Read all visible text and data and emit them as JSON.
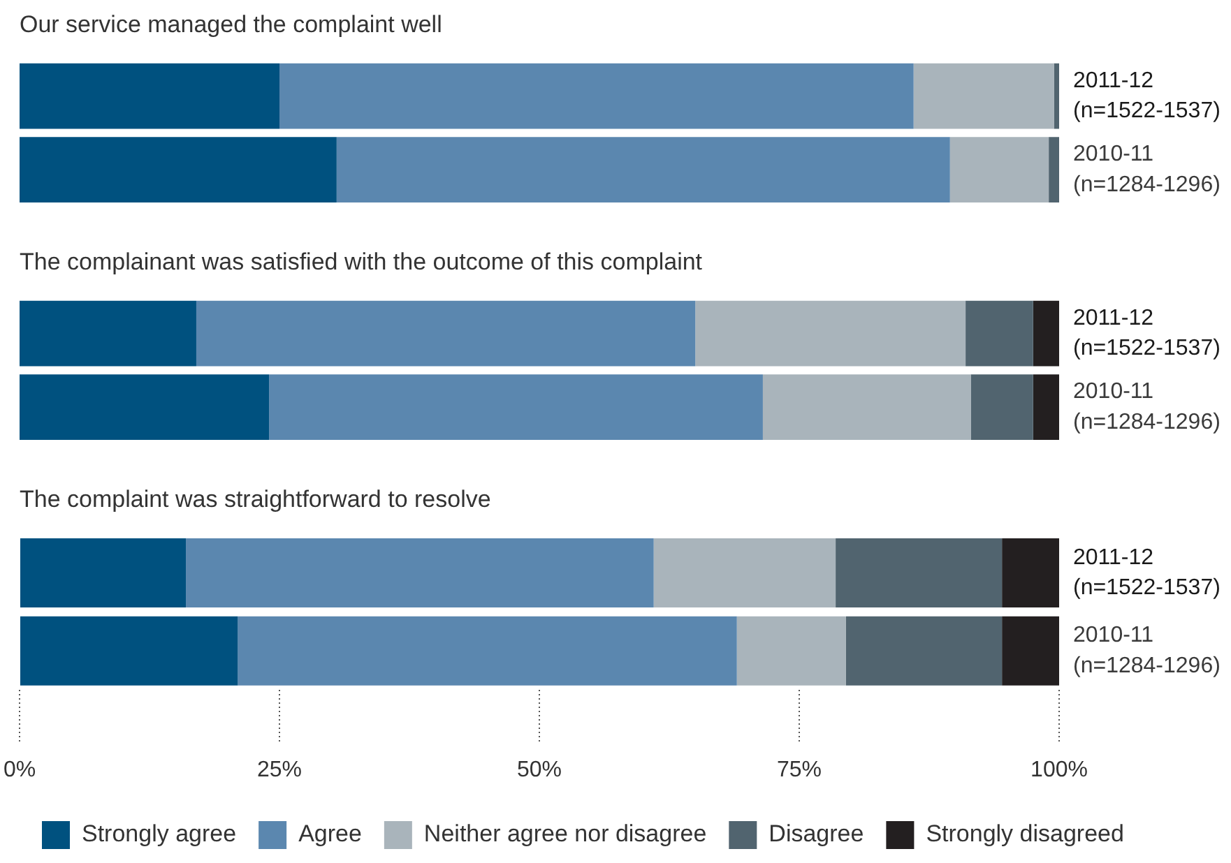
{
  "chart_data": [
    {
      "type": "bar",
      "orientation": "horizontal",
      "stacked": true,
      "grid": false,
      "tick_labels": "y",
      "title": "Our service managed the complaint well",
      "categories": [
        "2011-12\n(n=1522-1537)",
        "2010-11\n(n=1284-1296)"
      ],
      "xlim": [
        0,
        100
      ],
      "series": [
        {
          "color": "#00517f",
          "values": [
            25,
            30.5
          ]
        },
        {
          "color": "#5b87af",
          "values": [
            61,
            59
          ]
        },
        {
          "color": "#a9b4bb",
          "values": [
            13.5,
            9.5
          ]
        },
        {
          "color": "#51646f",
          "values": [
            0.5,
            1
          ]
        },
        {
          "color": "#231f20",
          "values": [
            0,
            0
          ]
        }
      ]
    },
    {
      "type": "bar",
      "orientation": "horizontal",
      "stacked": true,
      "grid": false,
      "tick_labels": "y",
      "title": "The complainant was satisfied with the outcome of this complaint",
      "categories": [
        "2011-12\n(n=1522-1537)",
        "2010-11\n(n=1284-1296)"
      ],
      "xlim": [
        0,
        100
      ],
      "series": [
        {
          "color": "#00517f",
          "values": [
            17,
            24
          ]
        },
        {
          "color": "#5b87af",
          "values": [
            48,
            47.5
          ]
        },
        {
          "color": "#a9b4bb",
          "values": [
            26,
            20
          ]
        },
        {
          "color": "#51646f",
          "values": [
            6.5,
            6
          ]
        },
        {
          "color": "#231f20",
          "values": [
            2.5,
            2.5
          ]
        }
      ]
    },
    {
      "type": "bar",
      "orientation": "horizontal",
      "stacked": true,
      "grid": false,
      "legend": "bottom",
      "title": "The complaint was straightforward to resolve",
      "categories": [
        "2011-12\n(n=1522-1537)",
        "2010-11\n(n=1284-1296)"
      ],
      "xlim": [
        0,
        100
      ],
      "xticks": [
        {
          "value": 0,
          "label": "0%"
        },
        {
          "value": 25,
          "label": "25%"
        },
        {
          "value": 50,
          "label": "50%"
        },
        {
          "value": 75,
          "label": "75%"
        },
        {
          "value": 100,
          "label": "100%"
        }
      ],
      "series": [
        {
          "name": "Strongly agree",
          "color": "#00517f",
          "values": [
            16,
            21
          ]
        },
        {
          "name": "Agree",
          "color": "#5b87af",
          "values": [
            45,
            48
          ]
        },
        {
          "name": "Neither agree nor disagree",
          "color": "#a9b4bb",
          "values": [
            17.5,
            10.5
          ]
        },
        {
          "name": "Disagree",
          "color": "#51646f",
          "values": [
            16,
            15
          ]
        },
        {
          "name": "Strongly disagreed",
          "color": "#231f20",
          "values": [
            5.5,
            5.5
          ]
        }
      ]
    }
  ]
}
